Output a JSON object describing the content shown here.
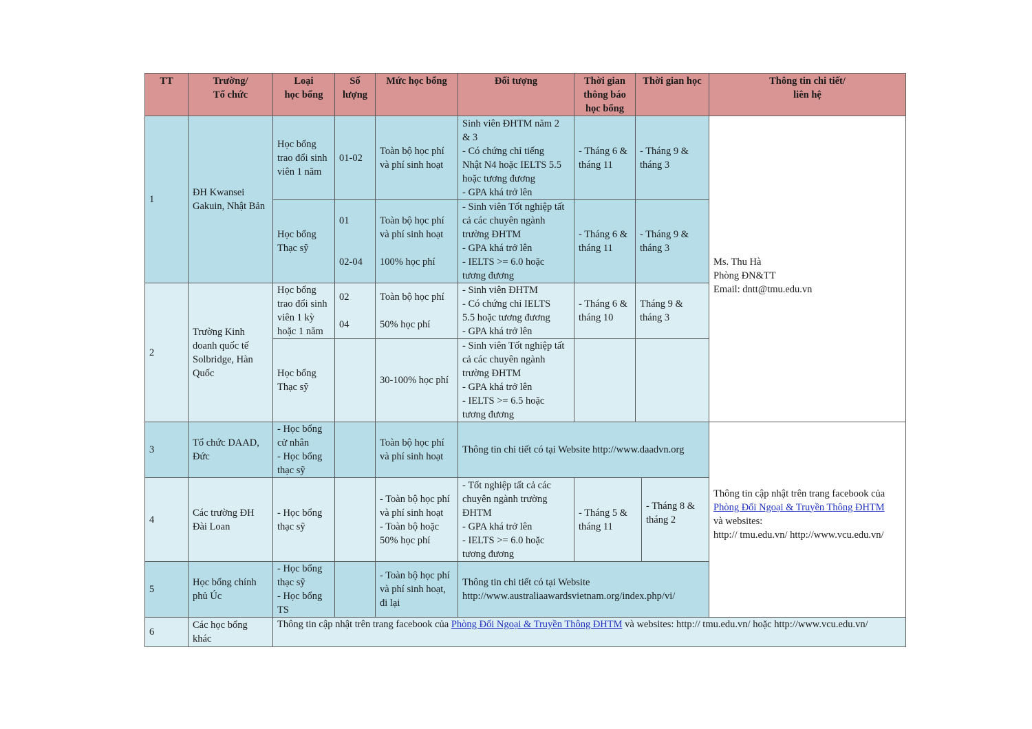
{
  "headers": {
    "tt": "TT",
    "school": "Trường/\nTổ chức",
    "type": "Loại\nhọc bổng",
    "qty": "Số\nlượng",
    "level": "Mức học bổng",
    "target": "Đối tượng",
    "notice": "Thời gian\nthông báo\nhọc bổng",
    "study": "Thời gian học",
    "contact": "Thông tin chi tiết/\nliên hệ"
  },
  "rows": [
    {
      "tt": "1",
      "school": "ĐH Kwansei\nGakuin, Nhật Bản",
      "subs": [
        {
          "type": "Học bổng\ntrao đổi sinh\nviên 1 năm",
          "qty": "01-02",
          "level": "Toàn bộ học phí\nvà phí sinh hoạt",
          "target": "Sinh viên ĐHTM năm 2\n& 3\n- Có chứng chỉ tiếng\nNhật N4 hoặc IELTS 5.5\nhoặc tương đương\n- GPA khá trở lên",
          "notice": "- Tháng 6 &\ntháng 11",
          "study": "-  Tháng 9 &\ntháng 3"
        },
        {
          "type": "Học bổng\nThạc sỹ",
          "qty": "01\n\n\n02-04",
          "level": "Toàn bộ học phí\nvà phí sinh hoạt\n\n100% học phí",
          "target": "- Sinh viên Tốt nghiệp tất\ncả các chuyên ngành\ntrường ĐHTM\n- GPA khá trở lên\n- IELTS >= 6.0 hoặc\ntương đương",
          "notice": "- Tháng 6 &\ntháng 11",
          "study": "-  Tháng 9 &\ntháng 3"
        }
      ]
    },
    {
      "tt": "2",
      "school": "Trường Kinh\ndoanh quốc tế\nSolbridge, Hàn\nQuốc",
      "subs": [
        {
          "type": "Học bổng\ntrao đổi sinh\nviên 1 kỳ\nhoặc 1 năm",
          "qty": "02\n\n04",
          "level": "Toàn bộ học phí\n\n50% học phí",
          "target": "- Sinh viên ĐHTM\n- Có chứng chỉ IELTS\n5.5 hoặc tương đương\n- GPA khá trở lên",
          "notice": "- Tháng 6 &\ntháng 10",
          "study": "Tháng 9 &\ntháng 3"
        },
        {
          "type": "Học bổng\nThạc sỹ",
          "qty": "",
          "level": "30-100% học phí",
          "target": "- Sinh viên Tốt nghiệp tất\ncả các chuyên ngành\ntrường ĐHTM\n- GPA khá trở lên\n- IELTS >= 6.5 hoặc\ntương đương",
          "notice": "",
          "study": ""
        }
      ]
    },
    {
      "tt": "3",
      "school": "Tổ chức DAAD,\nĐức",
      "type": "- Học bổng\ncử nhân\n- Học bổng\nthạc sỹ",
      "qty": "",
      "level": "Toàn bộ học phí\nvà phí sinh hoạt",
      "info": "Thông tin chi tiết có tại Website http://www.daadvn.org"
    },
    {
      "tt": "4",
      "school": "Các trường ĐH\nĐài Loan",
      "type": "- Học bổng\nthạc sỹ",
      "qty": "",
      "level": "- Toàn bộ học phí\nvà phí sinh hoạt\n- Toàn bộ hoặc\n50% học phí",
      "target": "- Tốt nghiệp tất cả các\nchuyên ngành trường\nĐHTM\n- GPA khá trở lên\n- IELTS >= 6.0  hoặc\ntương đương",
      "notice": "- Tháng 5 &\ntháng 11",
      "study": "- Tháng 8 &\ntháng 2"
    },
    {
      "tt": "5",
      "school": "Học bổng chính\nphủ Úc",
      "type": "- Học bổng\nthạc sỹ\n- Học bổng\nTS",
      "qty": "",
      "level": "- Toàn bộ học phí\nvà phí sinh hoạt,\nđi lại",
      "info": "Thông tin chi tiết có tại Website\nhttp://www.australiaawardsvietnam.org/index.php/vi/"
    },
    {
      "tt": "6",
      "school": "Các học bổng\nkhác",
      "info_before": "Thông tin cập nhật trên trang facebook của ",
      "info_link": "Phòng Đối Ngoại & Truyền Thông ĐHTM",
      "info_after": " và websites: http:// tmu.edu.vn/ hoặc http://www.vcu.edu.vn/"
    }
  ],
  "contact_1": "Ms. Thu Hà\nPhòng ĐN&TT\nEmail: dntt@tmu.edu.vn",
  "contact_2": {
    "line1": "Thông tin cập nhật trên trang facebook của",
    "link": "Phòng Đối Ngoại & Truyền Thông ĐHTM",
    "line3": "và websites:",
    "line4": "http:// tmu.edu.vn/ http://www.vcu.edu.vn/"
  },
  "colors": {
    "header": "#d99594",
    "row_dark": "#b6dde8",
    "row_light": "#dbeef3",
    "link": "#1f2fbf",
    "border": "#5a5a5a"
  }
}
